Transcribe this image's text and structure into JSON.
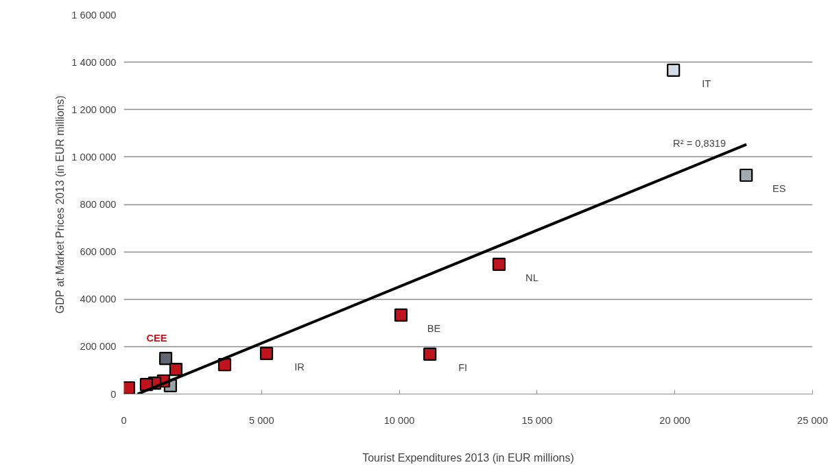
{
  "chart_data": {
    "type": "scatter",
    "xlabel": "Tourist Expenditures 2013 (in EUR millions)",
    "ylabel": "GDP at Market Prices 2013 (in EUR millions)",
    "xlim": [
      0,
      25000
    ],
    "ylim": [
      0,
      1600000
    ],
    "xticks": [
      0,
      {
        "value": 5000,
        "label": "5 000"
      },
      {
        "value": 10000,
        "label": "10 000"
      },
      {
        "value": 15000,
        "label": "15 000"
      },
      {
        "value": 20000,
        "label": "20 000"
      },
      {
        "value": 25000,
        "label": "25 000"
      }
    ],
    "yticks": [
      0,
      {
        "value": 200000,
        "label": "200 000"
      },
      {
        "value": 400000,
        "label": "400 000"
      },
      {
        "value": 600000,
        "label": "600 000"
      },
      {
        "value": 800000,
        "label": "800 000"
      },
      {
        "value": 1000000,
        "label": "1 000 000"
      },
      {
        "value": 1200000,
        "label": "1 200 000"
      },
      {
        "value": 1400000,
        "label": "1 400 000"
      },
      {
        "value": 1600000,
        "label": "1 600 000"
      }
    ],
    "grid": "y",
    "series": [
      {
        "marker": "square",
        "x": [
          19950,
          22590,
          13620,
          10060,
          11110,
          5180,
          3660,
          1520,
          1890,
          1690,
          1440,
          1120,
          820,
          320,
          170
        ],
        "values": [
          1366000,
          923000,
          547000,
          333000,
          168000,
          171000,
          124000,
          150000,
          104000,
          35000,
          55000,
          46000,
          40000,
          null,
          26000
        ],
        "colors": [
          "#d4dde6",
          "#a3a9b0",
          "#c0141c",
          "#c0141c",
          "#c0141c",
          "#c0141c",
          "#c0141c",
          "#5f6670",
          "#c0141c",
          "#9ba1a8",
          "#c0141c",
          "#c0141c",
          "#c0141c",
          "#c0141c",
          "#c0141c"
        ]
      },
      {
        "type": "line",
        "x": [
          500,
          22600
        ],
        "values": [
          0,
          1053000
        ],
        "color": "#000000"
      }
    ],
    "annotations": [
      "IT",
      "ES",
      "NL",
      "BE",
      "FI",
      "IR",
      "R² = 0,8319",
      "CEE"
    ]
  }
}
